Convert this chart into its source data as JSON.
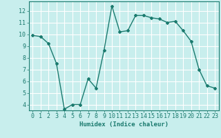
{
  "x": [
    0,
    1,
    2,
    3,
    4,
    5,
    6,
    7,
    8,
    9,
    10,
    11,
    12,
    13,
    14,
    15,
    16,
    17,
    18,
    19,
    20,
    21,
    22,
    23
  ],
  "y": [
    9.9,
    9.8,
    9.2,
    7.5,
    3.6,
    4.0,
    4.0,
    6.2,
    5.4,
    8.6,
    12.4,
    10.2,
    10.3,
    11.6,
    11.6,
    11.4,
    11.3,
    11.0,
    11.1,
    10.3,
    9.4,
    7.0,
    5.6,
    5.4
  ],
  "line_color": "#1a7a6e",
  "marker": "D",
  "marker_size": 2.0,
  "bg_color": "#c8eeed",
  "grid_color": "#ffffff",
  "xlabel": "Humidex (Indice chaleur)",
  "ylim": [
    3.5,
    12.8
  ],
  "xlim": [
    -0.5,
    23.5
  ],
  "yticks": [
    4,
    5,
    6,
    7,
    8,
    9,
    10,
    11,
    12
  ],
  "xticks": [
    0,
    1,
    2,
    3,
    4,
    5,
    6,
    7,
    8,
    9,
    10,
    11,
    12,
    13,
    14,
    15,
    16,
    17,
    18,
    19,
    20,
    21,
    22,
    23
  ],
  "xlabel_fontsize": 6.5,
  "tick_fontsize": 6.0,
  "label_color": "#1a7a6e",
  "linewidth": 1.0
}
